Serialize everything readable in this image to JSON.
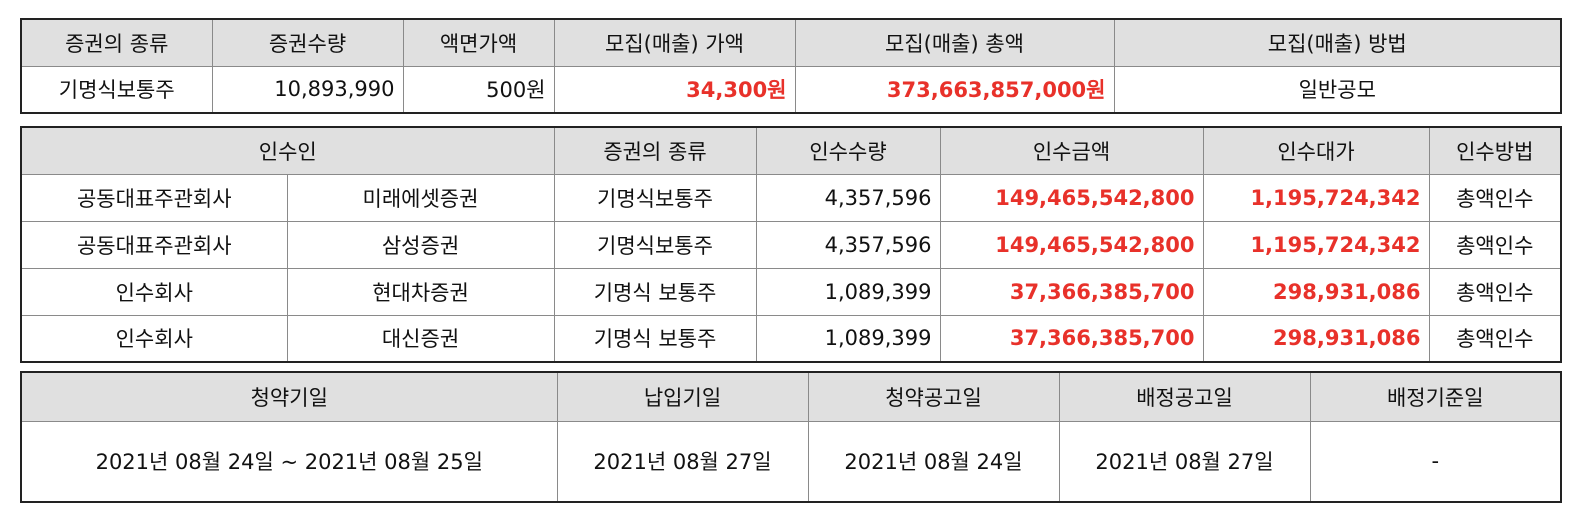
{
  "offering": {
    "headers": [
      "증권의 종류",
      "증권수량",
      "액면가액",
      "모집(매출) 가액",
      "모집(매출) 총액",
      "모집(매출) 방법"
    ],
    "row": {
      "type": "기명식보통주",
      "quantity": "10,893,990",
      "par_value": "500원",
      "price": "34,300원",
      "total": "373,663,857,000원",
      "method": "일반공모"
    }
  },
  "underwriters": {
    "headers": [
      "인수인",
      "증권의 종류",
      "인수수량",
      "인수금액",
      "인수대가",
      "인수방법"
    ],
    "rows": [
      {
        "role": "공동대표주관회사",
        "name": "미래에셋증권",
        "type": "기명식보통주",
        "quantity": "4,357,596",
        "amount": "149,465,542,800",
        "fee": "1,195,724,342",
        "method": "총액인수"
      },
      {
        "role": "공동대표주관회사",
        "name": "삼성증권",
        "type": "기명식보통주",
        "quantity": "4,357,596",
        "amount": "149,465,542,800",
        "fee": "1,195,724,342",
        "method": "총액인수"
      },
      {
        "role": "인수회사",
        "name": "현대차증권",
        "type": "기명식 보통주",
        "quantity": "1,089,399",
        "amount": "37,366,385,700",
        "fee": "298,931,086",
        "method": "총액인수"
      },
      {
        "role": "인수회사",
        "name": "대신증권",
        "type": "기명식 보통주",
        "quantity": "1,089,399",
        "amount": "37,366,385,700",
        "fee": "298,931,086",
        "method": "총액인수"
      }
    ]
  },
  "schedule": {
    "headers": [
      "청약기일",
      "납입기일",
      "청약공고일",
      "배정공고일",
      "배정기준일"
    ],
    "values": [
      "2021년 08월 24일 ~ 2021년 08월 25일",
      "2021년 08월 27일",
      "2021년 08월 24일",
      "2021년 08월 27일",
      "-"
    ]
  },
  "colors": {
    "highlight": "#e8312a",
    "header_bg": "#e0e0e0"
  }
}
